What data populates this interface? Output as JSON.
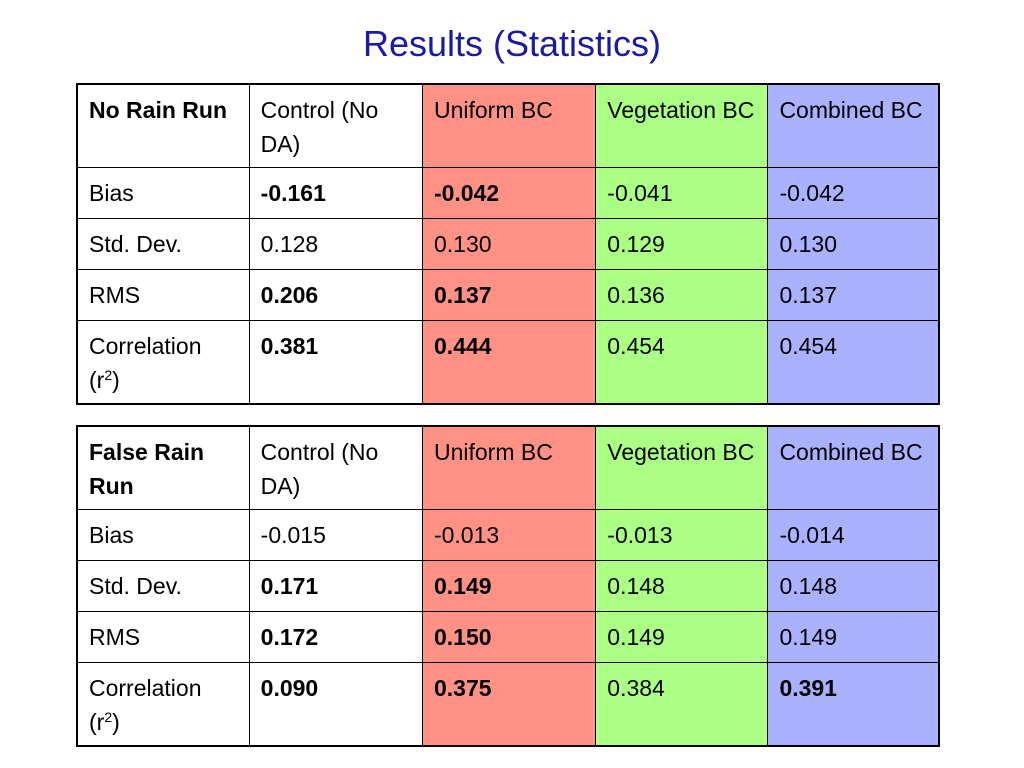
{
  "title": "Results (Statistics)",
  "colors": {
    "title": "#1a1aa6",
    "uniform_bc": "#ff9284",
    "vegetation_bc": "#aaff84",
    "combined_bc": "#aab1ff"
  },
  "tables": [
    {
      "header": {
        "run": "No Rain Run",
        "control": "Control (No DA)",
        "uniform": "Uniform BC",
        "vegetation": "Vegetation BC",
        "combined": "Combined BC"
      },
      "rows": [
        {
          "label": "Bias",
          "control": "-0.161",
          "uniform": "-0.042",
          "vegetation": "-0.041",
          "combined": "-0.042"
        },
        {
          "label": "Std. Dev.",
          "control": "0.128",
          "uniform": "0.130",
          "vegetation": "0.129",
          "combined": "0.130"
        },
        {
          "label": "RMS",
          "control": "0.206",
          "uniform": "0.137",
          "vegetation": "0.136",
          "combined": "0.137"
        },
        {
          "label": "Correlation (r",
          "label_sup": "2",
          "label_end": ")",
          "control": "0.381",
          "uniform": "0.444",
          "vegetation": "0.454",
          "combined": "0.454"
        }
      ]
    },
    {
      "header": {
        "run": "False Rain Run",
        "control": "Control (No DA)",
        "uniform": "Uniform BC",
        "vegetation": "Vegetation BC",
        "combined": "Combined BC"
      },
      "rows": [
        {
          "label": "Bias",
          "control": "-0.015",
          "uniform": "-0.013",
          "vegetation": "-0.013",
          "combined": "-0.014"
        },
        {
          "label": "Std. Dev.",
          "control": "0.171",
          "uniform": "0.149",
          "vegetation": "0.148",
          "combined": "0.148"
        },
        {
          "label": "RMS",
          "control": "0.172",
          "uniform": "0.150",
          "vegetation": "0.149",
          "combined": "0.149"
        },
        {
          "label": "Correlation (r",
          "label_sup": "2",
          "label_end": ")",
          "control": "0.090",
          "uniform": "0.375",
          "vegetation": "0.384",
          "combined": "0.391"
        }
      ]
    }
  ]
}
